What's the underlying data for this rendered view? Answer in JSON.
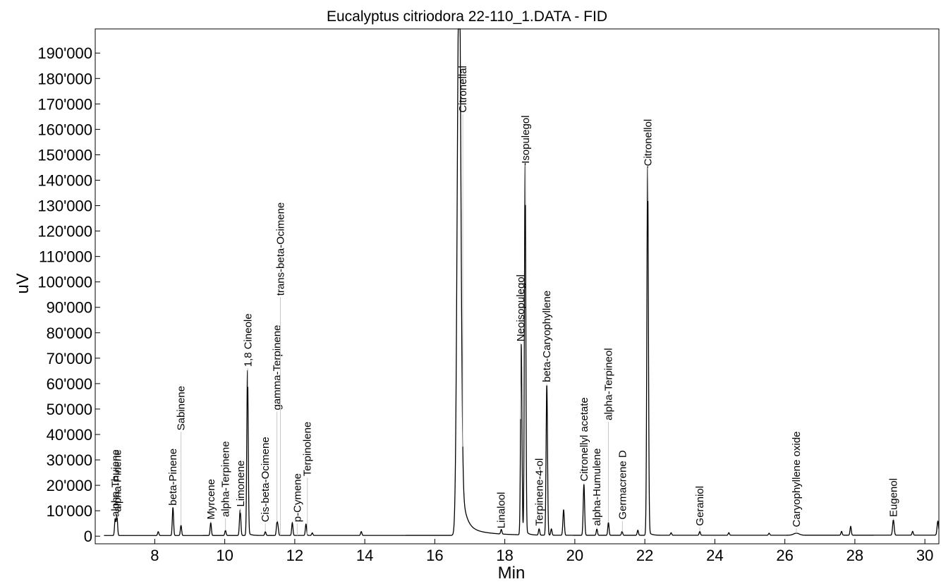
{
  "chart_data": {
    "type": "line",
    "title": "Eucalyptus citriodora 22-110_1.DATA - FID",
    "xlabel": "Min",
    "ylabel": "uV",
    "xlim": [
      6.3,
      30.4
    ],
    "ylim": [
      -3000,
      199500
    ],
    "xticks": [
      8,
      10,
      12,
      14,
      16,
      18,
      20,
      22,
      24,
      26,
      28,
      30
    ],
    "yticks": [
      0,
      10000,
      20000,
      30000,
      40000,
      50000,
      60000,
      70000,
      80000,
      90000,
      100000,
      110000,
      120000,
      130000,
      140000,
      150000,
      160000,
      170000,
      180000,
      190000
    ],
    "ytick_labels": [
      "0",
      "10'000",
      "20'000",
      "30'000",
      "40'000",
      "50'000",
      "60'000",
      "70'000",
      "80'000",
      "90'000",
      "100'000",
      "110'000",
      "120'000",
      "130'000",
      "140'000",
      "150'000",
      "160'000",
      "170'000",
      "180'000",
      "190'000"
    ],
    "grid": false,
    "line_color": "#000000",
    "peaks": [
      {
        "name": "alpha-Thujene",
        "x": 6.87,
        "y": 6500,
        "w": 0.018
      },
      {
        "name": "alpha-Pinene",
        "x": 6.92,
        "y": 8000,
        "w": 0.018
      },
      {
        "name": "",
        "x": 8.1,
        "y": 1500,
        "w": 0.018
      },
      {
        "name": "beta-Pinene",
        "x": 8.52,
        "y": 11000,
        "w": 0.018
      },
      {
        "name": "Sabinene",
        "x": 8.75,
        "y": 4000,
        "w": 0.018
      },
      {
        "name": "Myrcene",
        "x": 9.6,
        "y": 5000,
        "w": 0.018
      },
      {
        "name": "alpha-Terpinene",
        "x": 10.02,
        "y": 2000,
        "w": 0.018
      },
      {
        "name": "Limonene",
        "x": 10.44,
        "y": 10000,
        "w": 0.02
      },
      {
        "name": "1,8 Cineole",
        "x": 10.65,
        "y": 65000,
        "w": 0.02
      },
      {
        "name": "Cis-beta-Ocimene",
        "x": 11.16,
        "y": 1500,
        "w": 0.018
      },
      {
        "name": "trans-beta-Ocimene",
        "x": 11.49,
        "y": 4500,
        "w": 0.018
      },
      {
        "name": "gamma-Terpinene",
        "x": 11.52,
        "y": 3000,
        "w": 0.018
      },
      {
        "name": "p-Cymene",
        "x": 11.93,
        "y": 5000,
        "w": 0.018
      },
      {
        "name": "Terpinolene",
        "x": 12.32,
        "y": 4500,
        "w": 0.018
      },
      {
        "name": "",
        "x": 12.5,
        "y": 1000,
        "w": 0.018
      },
      {
        "name": "",
        "x": 13.9,
        "y": 1500,
        "w": 0.018
      },
      {
        "name": "Citronellal",
        "x": 16.69,
        "y": 220000,
        "w": 0.05
      },
      {
        "name": "Linalool",
        "x": 17.9,
        "y": 1800,
        "w": 0.018
      },
      {
        "name": "Neoisopulegol",
        "x": 18.47,
        "y": 75000,
        "w": 0.02
      },
      {
        "name": "Isopulegol",
        "x": 18.58,
        "y": 145000,
        "w": 0.02
      },
      {
        "name": "Terpinene-4-ol",
        "x": 18.98,
        "y": 2500,
        "w": 0.018
      },
      {
        "name": "beta-Caryophyllene",
        "x": 19.2,
        "y": 59000,
        "w": 0.02
      },
      {
        "name": "",
        "x": 19.33,
        "y": 2500,
        "w": 0.018
      },
      {
        "name": "",
        "x": 19.68,
        "y": 10000,
        "w": 0.02
      },
      {
        "name": "Citronellyl acetate",
        "x": 20.26,
        "y": 20000,
        "w": 0.02
      },
      {
        "name": "alpha-Humulene",
        "x": 20.63,
        "y": 2500,
        "w": 0.018
      },
      {
        "name": "alpha-Terpineol",
        "x": 20.96,
        "y": 5000,
        "w": 0.018
      },
      {
        "name": "Germacrene D",
        "x": 21.35,
        "y": 1500,
        "w": 0.018
      },
      {
        "name": "",
        "x": 21.8,
        "y": 2000,
        "w": 0.018
      },
      {
        "name": "Citronellol",
        "x": 22.08,
        "y": 144000,
        "w": 0.022
      },
      {
        "name": "",
        "x": 22.75,
        "y": 1000,
        "w": 0.018
      },
      {
        "name": "Geraniol",
        "x": 23.57,
        "y": 1500,
        "w": 0.018
      },
      {
        "name": "",
        "x": 24.4,
        "y": 1000,
        "w": 0.018
      },
      {
        "name": "",
        "x": 25.55,
        "y": 800,
        "w": 0.018
      },
      {
        "name": "Caryophyllene oxide",
        "x": 26.33,
        "y": 800,
        "w": 0.08
      },
      {
        "name": "",
        "x": 27.62,
        "y": 1500,
        "w": 0.018
      },
      {
        "name": "",
        "x": 27.88,
        "y": 3500,
        "w": 0.018
      },
      {
        "name": "Eugenol",
        "x": 29.1,
        "y": 6000,
        "w": 0.022
      },
      {
        "name": "",
        "x": 29.65,
        "y": 1500,
        "w": 0.018
      },
      {
        "name": "",
        "x": 30.37,
        "y": 5500,
        "w": 0.022
      }
    ],
    "peak_labels": [
      {
        "text": "alpha-Thujene",
        "x": 6.87,
        "tip": 7000
      },
      {
        "text": "alpha-Pinene",
        "x": 6.93,
        "tip": 9000
      },
      {
        "text": "beta-Pinene",
        "x": 8.52,
        "tip": 11500
      },
      {
        "text": "Sabinene",
        "x": 8.75,
        "tip": 41000
      },
      {
        "text": "Myrcene",
        "x": 9.6,
        "tip": 6000
      },
      {
        "text": "alpha-Terpinene",
        "x": 10.02,
        "tip": 7000
      },
      {
        "text": "Limonene",
        "x": 10.45,
        "tip": 11000
      },
      {
        "text": "1,8 Cineole",
        "x": 10.66,
        "tip": 66000
      },
      {
        "text": "Cis-beta-Ocimene",
        "x": 11.16,
        "tip": 5000
      },
      {
        "text": "gamma-Terpinene",
        "x": 11.49,
        "tip": 49000
      },
      {
        "text": "trans-beta-Ocimene",
        "x": 11.59,
        "tip": 94000
      },
      {
        "text": "p-Cymene",
        "x": 12.07,
        "tip": 5000
      },
      {
        "text": "Terpinolene",
        "x": 12.36,
        "tip": 23000
      },
      {
        "text": "Citronellal",
        "x": 16.8,
        "tip": 166000
      },
      {
        "text": "Linalool",
        "x": 17.9,
        "tip": 2500
      },
      {
        "text": "Neoisopulegol",
        "x": 18.45,
        "tip": 76000
      },
      {
        "text": "Isopulegol",
        "x": 18.59,
        "tip": 146000
      },
      {
        "text": "Terpinene-4-ol",
        "x": 18.98,
        "tip": 3500
      },
      {
        "text": "beta-Caryophyllene",
        "x": 19.2,
        "tip": 60000
      },
      {
        "text": "Citronellyl acetate",
        "x": 20.26,
        "tip": 21000
      },
      {
        "text": "alpha-Humulene",
        "x": 20.63,
        "tip": 3500
      },
      {
        "text": "alpha-Terpineol",
        "x": 20.96,
        "tip": 45000
      },
      {
        "text": "Germacrene D",
        "x": 21.36,
        "tip": 6000
      },
      {
        "text": "Citronellol",
        "x": 22.09,
        "tip": 145000
      },
      {
        "text": "Geraniol",
        "x": 23.57,
        "tip": 3500
      },
      {
        "text": "Caryophyllene oxide",
        "x": 26.33,
        "tip": 3000
      },
      {
        "text": "Eugenol",
        "x": 29.1,
        "tip": 7000
      }
    ]
  }
}
